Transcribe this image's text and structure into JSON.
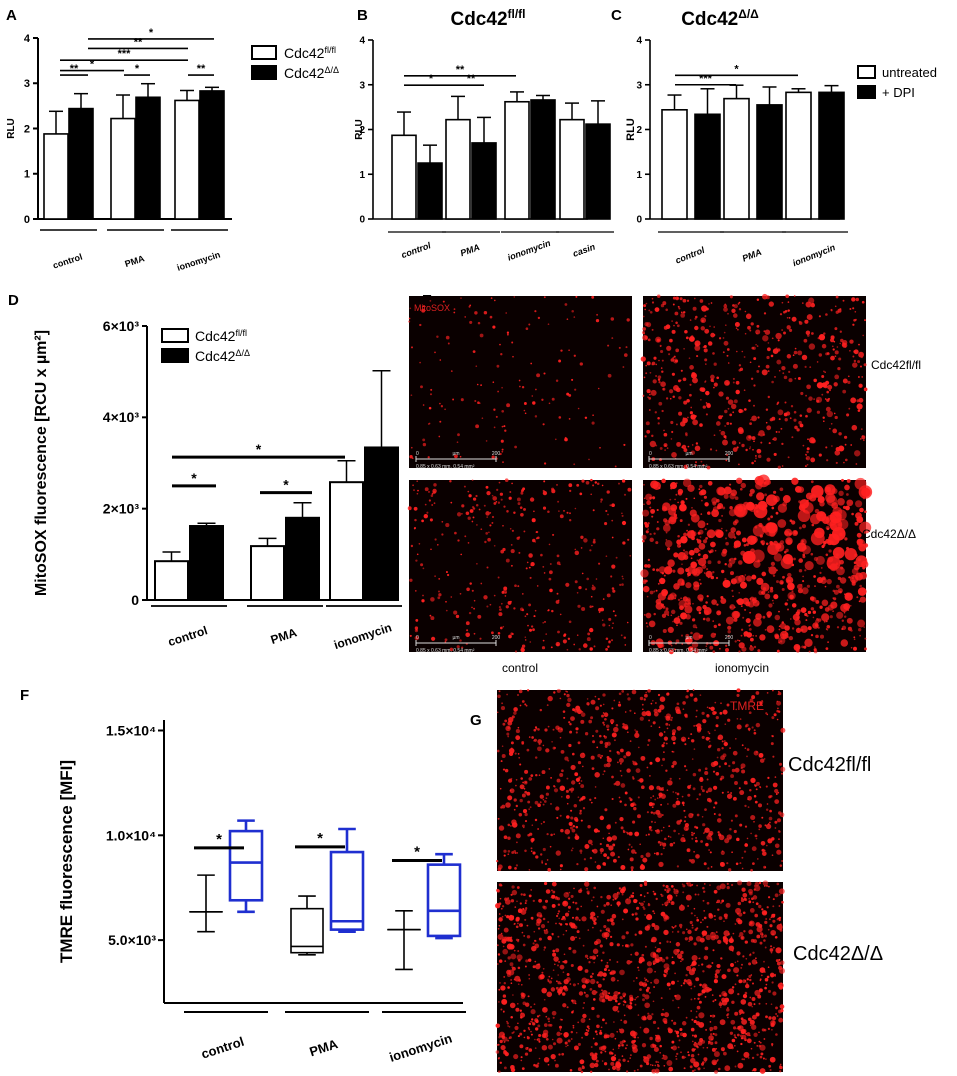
{
  "panels": {
    "A": {
      "letter": "A",
      "legend": [
        {
          "base": "Cdc42",
          "sup": "fl/fl",
          "fill": "open"
        },
        {
          "base": "Cdc42",
          "sup": "Δ/Δ",
          "fill": "solid"
        }
      ]
    },
    "B": {
      "letter": "B",
      "title_base": "Cdc42",
      "title_sup": "fl/fl"
    },
    "C": {
      "letter": "C",
      "title_base": "Cdc42",
      "title_sup": "Δ/Δ",
      "legend": [
        {
          "label": "untreated",
          "fill": "open"
        },
        {
          "label": "+ DPI",
          "fill": "solid"
        }
      ]
    },
    "D": {
      "letter": "D",
      "legend": [
        {
          "base": "Cdc42",
          "sup": "fl/fl",
          "fill": "open"
        },
        {
          "base": "Cdc42",
          "sup": "Δ/Δ",
          "fill": "solid"
        }
      ]
    },
    "E": {
      "letter": "E",
      "stain_label": "MitoSOX",
      "row_labels": [
        "Cdc42fl/fl",
        "Cdc42Δ/Δ"
      ],
      "col_labels": [
        "control",
        "ionomycin"
      ],
      "scalebar": {
        "start": "0",
        "unit": "µm",
        "end": "200",
        "caption": "0.85 x 0.63 mm, 0.54 mm²"
      }
    },
    "F": {
      "letter": "F"
    },
    "G": {
      "letter": "G",
      "stain_label": "TMRE",
      "row_labels": [
        "Cdc42fl/fl",
        "Cdc42Δ/Δ"
      ]
    }
  },
  "colors": {
    "bar_solid": "#000000",
    "bar_open": "#ffffff",
    "box_blue": "#1f2fd0",
    "fluor_red": "#ff2020",
    "micro_bg": "#0a0000"
  },
  "chart_data": [
    {
      "id": "A",
      "type": "bar",
      "categories": [
        "control",
        "PMA",
        "ionomycin"
      ],
      "ylabel": "RLU",
      "ylim": [
        0,
        4
      ],
      "yticks": [
        "0",
        "1",
        "2",
        "3",
        "4"
      ],
      "series": [
        {
          "name": "Cdc42fl/fl",
          "values": [
            1.88,
            2.22,
            2.62
          ],
          "errors": [
            0.5,
            0.52,
            0.22
          ]
        },
        {
          "name": "Cdc42Δ/Δ",
          "values": [
            2.44,
            2.69,
            2.83
          ],
          "errors": [
            0.33,
            0.3,
            0.08
          ]
        }
      ],
      "significance": [
        "**",
        "*",
        "***",
        "*",
        "**",
        "**",
        "*"
      ]
    },
    {
      "id": "B",
      "type": "bar",
      "categories": [
        "control",
        "PMA",
        "ionomycin",
        "casin"
      ],
      "ylabel": "RLU",
      "ylim": [
        0,
        4
      ],
      "yticks": [
        "0",
        "1",
        "2",
        "3",
        "4"
      ],
      "series": [
        {
          "name": "untreated",
          "values": [
            1.87,
            2.22,
            2.62,
            2.22
          ],
          "errors": [
            0.52,
            0.52,
            0.22,
            0.37
          ]
        },
        {
          "name": "+ DPI",
          "values": [
            1.25,
            1.7,
            2.66,
            2.12
          ],
          "errors": [
            0.4,
            0.57,
            0.1,
            0.52
          ]
        }
      ],
      "significance": [
        "*",
        "**",
        "**"
      ]
    },
    {
      "id": "C",
      "type": "bar",
      "categories": [
        "control",
        "PMA",
        "ionomycin"
      ],
      "ylabel": "RLU",
      "ylim": [
        0,
        4
      ],
      "yticks": [
        "0",
        "1",
        "2",
        "3",
        "4"
      ],
      "series": [
        {
          "name": "untreated",
          "values": [
            2.44,
            2.69,
            2.83
          ],
          "errors": [
            0.33,
            0.3,
            0.08
          ]
        },
        {
          "name": "+ DPI",
          "values": [
            2.34,
            2.55,
            2.83
          ],
          "errors": [
            0.57,
            0.4,
            0.15
          ]
        }
      ],
      "significance": [
        "***",
        "*"
      ]
    },
    {
      "id": "D",
      "type": "bar",
      "categories": [
        "control",
        "PMA",
        "ionomycin"
      ],
      "ylabel": "MitoSOX fluorescence [RCU x µm²]",
      "ylim": [
        0,
        6000
      ],
      "yticks": [
        "0",
        "2×10³",
        "4×10³",
        "6×10³"
      ],
      "series": [
        {
          "name": "Cdc42fl/fl",
          "values": [
            850,
            1180,
            2580
          ],
          "errors": [
            200,
            170,
            470
          ]
        },
        {
          "name": "Cdc42Δ/Δ",
          "values": [
            1620,
            1800,
            3340
          ],
          "errors": [
            60,
            330,
            1680
          ]
        }
      ],
      "significance": [
        "*",
        "*",
        "*"
      ]
    },
    {
      "id": "F",
      "type": "box",
      "categories": [
        "control",
        "PMA",
        "ionomycin"
      ],
      "ylabel": "TMRE fluorescence [MFI]",
      "ylim": [
        2000,
        15500
      ],
      "yticks": [
        "5.0×10³",
        "1.0×10⁴",
        "1.5×10⁴"
      ],
      "series": [
        {
          "name": "Cdc42fl/fl",
          "boxes": [
            {
              "min": 5400,
              "q1": 6350,
              "median": 6350,
              "q3": 6350,
              "max": 8100
            },
            {
              "min": 4300,
              "q1": 4400,
              "median": 4700,
              "q3": 6500,
              "max": 7100
            },
            {
              "min": 3600,
              "q1": 5500,
              "median": 5500,
              "q3": 5500,
              "max": 6400
            }
          ]
        },
        {
          "name": "Cdc42Δ/Δ",
          "boxes": [
            {
              "min": 6350,
              "q1": 6900,
              "median": 8700,
              "q3": 10200,
              "max": 10700
            },
            {
              "min": 5400,
              "q1": 5500,
              "median": 5900,
              "q3": 9200,
              "max": 10300
            },
            {
              "min": 5100,
              "q1": 5200,
              "median": 6400,
              "q3": 8600,
              "max": 9100
            }
          ]
        }
      ],
      "significance": [
        "*",
        "*",
        "*"
      ]
    }
  ]
}
